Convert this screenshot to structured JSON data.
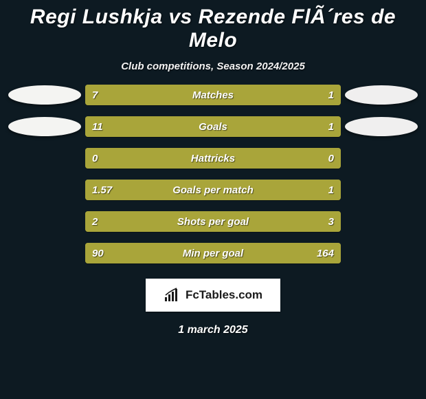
{
  "title": "Regi Lushkja vs Rezende FlÃ´res de Melo",
  "subtitle": "Club competitions, Season 2024/2025",
  "date": "1 march 2025",
  "logo_text": "FcTables.com",
  "colors": {
    "background": "#0d1a22",
    "left_bar": "#a9a53a",
    "right_bar": "#a9a53a",
    "neutral_bar": "#a9a53a",
    "avatar_left": "#f4f4f2",
    "avatar_right": "#f0efef",
    "text": "#ffffff"
  },
  "stats": [
    {
      "label": "Matches",
      "left_val": "7",
      "right_val": "1",
      "left_pct": 87.5,
      "right_pct": 12.5,
      "show_left_avatar": true,
      "show_right_avatar": true
    },
    {
      "label": "Goals",
      "left_val": "11",
      "right_val": "1",
      "left_pct": 91.7,
      "right_pct": 8.3,
      "show_left_avatar": true,
      "show_right_avatar": true
    },
    {
      "label": "Hattricks",
      "left_val": "0",
      "right_val": "0",
      "left_pct": 50,
      "right_pct": 50,
      "show_left_avatar": false,
      "show_right_avatar": false
    },
    {
      "label": "Goals per match",
      "left_val": "1.57",
      "right_val": "1",
      "left_pct": 61.1,
      "right_pct": 38.9,
      "show_left_avatar": false,
      "show_right_avatar": false
    },
    {
      "label": "Shots per goal",
      "left_val": "2",
      "right_val": "3",
      "left_pct": 40,
      "right_pct": 60,
      "show_left_avatar": false,
      "show_right_avatar": false
    },
    {
      "label": "Min per goal",
      "left_val": "90",
      "right_val": "164",
      "left_pct": 35.4,
      "right_pct": 64.6,
      "show_left_avatar": false,
      "show_right_avatar": false
    }
  ]
}
